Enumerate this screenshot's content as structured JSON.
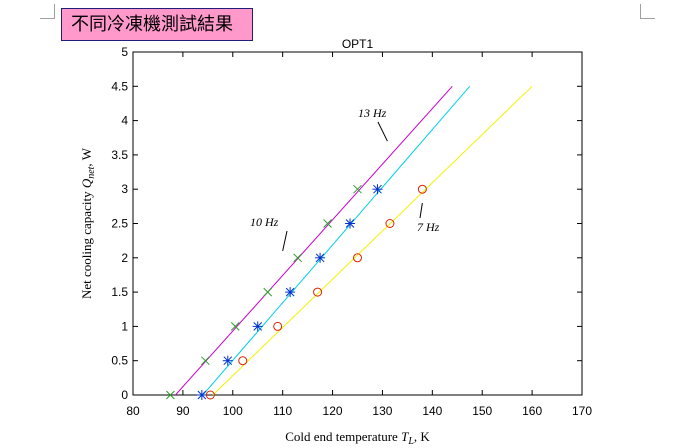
{
  "header": {
    "title": "不同冷凍機測試結果"
  },
  "chart_data": {
    "type": "line",
    "title": "OPT1",
    "xlabel": "Cold end temperature T_L, K",
    "ylabel": "Net cooling capacity Q_net, W",
    "xlim": [
      80,
      170
    ],
    "ylim": [
      0,
      5
    ],
    "xticks": [
      80,
      90,
      100,
      110,
      120,
      130,
      140,
      150,
      160,
      170
    ],
    "yticks": [
      0,
      0.5,
      1,
      1.5,
      2,
      2.5,
      3,
      3.5,
      4,
      4.5,
      5
    ],
    "grid": false,
    "series": [
      {
        "name": "13 Hz",
        "kind": "line",
        "color": "#cc00cc",
        "x": [
          88.5,
          144
        ],
        "y": [
          0,
          4.5
        ]
      },
      {
        "name": "10 Hz",
        "kind": "line",
        "color": "#00d0e8",
        "x": [
          94,
          147.5
        ],
        "y": [
          0,
          4.5
        ]
      },
      {
        "name": "7 Hz",
        "kind": "line",
        "color": "#f2f200",
        "x": [
          96,
          160
        ],
        "y": [
          0,
          4.5
        ]
      },
      {
        "name": "",
        "kind": "markers",
        "marker": "x",
        "color": "#2ca02c",
        "x": [
          87.5,
          94.5,
          100.5,
          107,
          113,
          119,
          125
        ],
        "y": [
          0,
          0.5,
          1,
          1.5,
          2,
          2.5,
          3
        ]
      },
      {
        "name": "",
        "kind": "markers",
        "marker": "star",
        "color": "#0033cc",
        "x": [
          93.8,
          99,
          105,
          111.5,
          117.5,
          123.5,
          129
        ],
        "y": [
          0,
          0.5,
          1,
          1.5,
          2,
          2.5,
          3
        ]
      },
      {
        "name": "",
        "kind": "markers",
        "marker": "circle",
        "color": "#dd2200",
        "x": [
          95.5,
          102,
          109,
          117,
          125,
          131.5,
          138
        ],
        "y": [
          0,
          0.5,
          1,
          1.5,
          2,
          2.5,
          3
        ]
      }
    ],
    "annotations": [
      {
        "text": "13 Hz",
        "point": [
          131,
          3.7
        ]
      },
      {
        "text": "10 Hz",
        "point": [
          110,
          2.1
        ]
      },
      {
        "text": "7 Hz",
        "point": [
          138,
          2.8
        ]
      }
    ]
  }
}
